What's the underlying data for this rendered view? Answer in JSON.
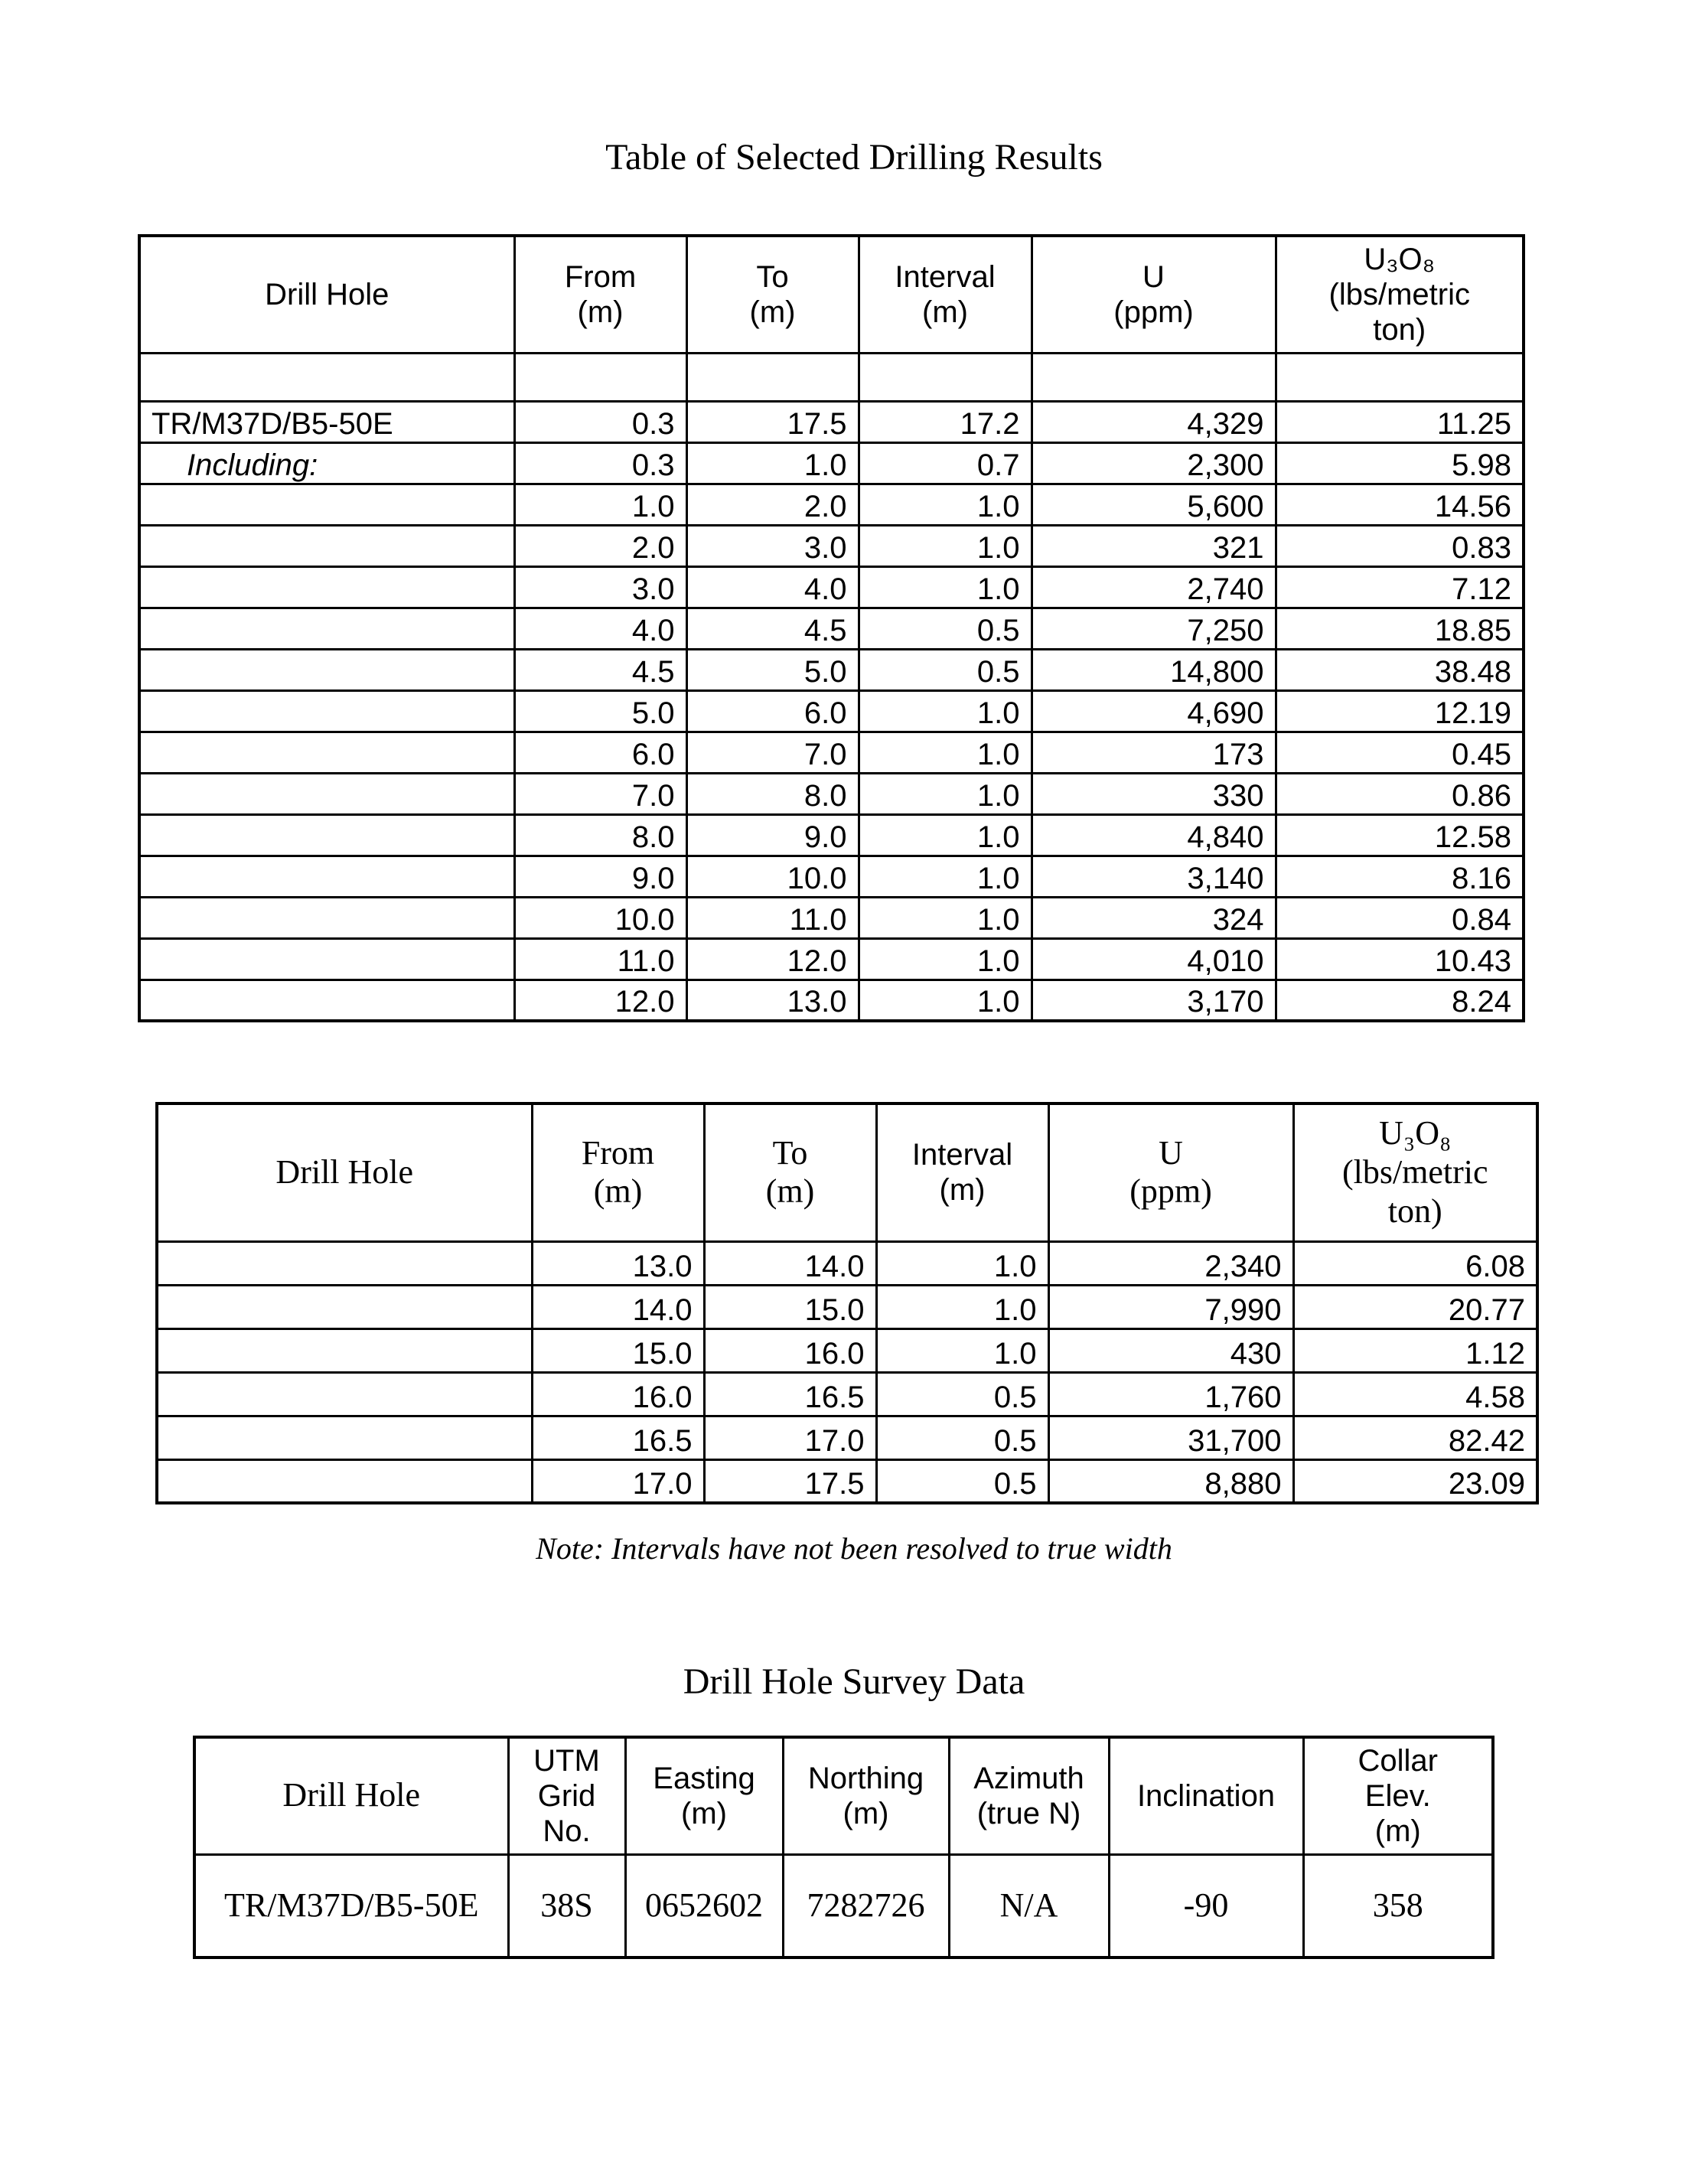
{
  "title": "Table of Selected Drilling Results",
  "results_table": {
    "headers": [
      "Drill Hole",
      "From\n(m)",
      "To\n(m)",
      "Interval\n(m)",
      "U\n(ppm)",
      "U₃O₈\n(lbs/metric\nton)"
    ],
    "hole": "TR/M37D/B5-50E",
    "including": "Including:",
    "rows": [
      [
        "0.3",
        "17.5",
        "17.2",
        "4,329",
        "11.25"
      ],
      [
        "0.3",
        "1.0",
        "0.7",
        "2,300",
        "5.98"
      ],
      [
        "1.0",
        "2.0",
        "1.0",
        "5,600",
        "14.56"
      ],
      [
        "2.0",
        "3.0",
        "1.0",
        "321",
        "0.83"
      ],
      [
        "3.0",
        "4.0",
        "1.0",
        "2,740",
        "7.12"
      ],
      [
        "4.0",
        "4.5",
        "0.5",
        "7,250",
        "18.85"
      ],
      [
        "4.5",
        "5.0",
        "0.5",
        "14,800",
        "38.48"
      ],
      [
        "5.0",
        "6.0",
        "1.0",
        "4,690",
        "12.19"
      ],
      [
        "6.0",
        "7.0",
        "1.0",
        "173",
        "0.45"
      ],
      [
        "7.0",
        "8.0",
        "1.0",
        "330",
        "0.86"
      ],
      [
        "8.0",
        "9.0",
        "1.0",
        "4,840",
        "12.58"
      ],
      [
        "9.0",
        "10.0",
        "1.0",
        "3,140",
        "8.16"
      ],
      [
        "10.0",
        "11.0",
        "1.0",
        "324",
        "0.84"
      ],
      [
        "11.0",
        "12.0",
        "1.0",
        "4,010",
        "10.43"
      ],
      [
        "12.0",
        "13.0",
        "1.0",
        "3,170",
        "8.24"
      ]
    ]
  },
  "results_table_continued": {
    "headers": [
      "Drill Hole",
      "From\n(m)",
      "To\n(m)",
      "Interval\n(m)",
      "U\n(ppm)",
      "U₃O₈\n(lbs/metric\nton)"
    ],
    "rows": [
      [
        "13.0",
        "14.0",
        "1.0",
        "2,340",
        "6.08"
      ],
      [
        "14.0",
        "15.0",
        "1.0",
        "7,990",
        "20.77"
      ],
      [
        "15.0",
        "16.0",
        "1.0",
        "430",
        "1.12"
      ],
      [
        "16.0",
        "16.5",
        "0.5",
        "1,760",
        "4.58"
      ],
      [
        "16.5",
        "17.0",
        "0.5",
        "31,700",
        "82.42"
      ],
      [
        "17.0",
        "17.5",
        "0.5",
        "8,880",
        "23.09"
      ]
    ]
  },
  "note": "Note:  Intervals have not been resolved to true width",
  "survey_title": "Drill Hole Survey Data",
  "survey_table": {
    "headers": [
      "Drill Hole",
      "UTM\nGrid\nNo.",
      "Easting\n(m)",
      "Northing\n(m)",
      "Azimuth\n(true N)",
      "Inclination",
      "Collar\nElev.\n(m)"
    ],
    "rows": [
      [
        "TR/M37D/B5-50E",
        "38S",
        "0652602",
        "7282726",
        "N/A",
        "-90",
        "358"
      ]
    ]
  }
}
